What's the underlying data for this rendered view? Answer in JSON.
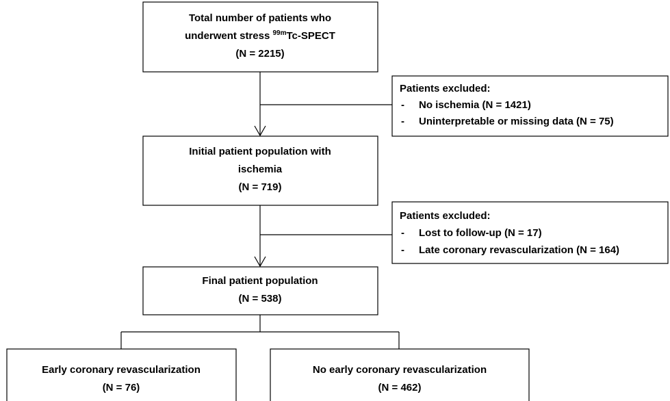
{
  "nodes": [
    {
      "line1": "Total number of patients who",
      "line2_prefix": "underwent stress ",
      "line2_sup": "99m",
      "line2_suffix": "Tc-SPECT",
      "count": "(N = 2215)"
    },
    {
      "line1": "Initial patient population with",
      "line2": "ischemia",
      "count": "(N = 719)"
    },
    {
      "line1": "Final patient population",
      "count": "(N = 538)"
    },
    {
      "line1": "Early coronary revascularization",
      "count": "(N = 76)"
    },
    {
      "line1": "No early coronary revascularization",
      "count": "(N = 462)"
    }
  ],
  "exclusions": [
    {
      "title": "Patients excluded:",
      "items": [
        {
          "dash": "-",
          "text": "No ischemia (N = 1421)"
        },
        {
          "dash": "-",
          "text": "Uninterpretable or missing data (N = 75)"
        }
      ]
    },
    {
      "title": "Patients excluded:",
      "items": [
        {
          "dash": "-",
          "text": "Lost to follow-up (N = 17)"
        },
        {
          "dash": "-",
          "text": "Late coronary revascularization (N = 164)"
        }
      ]
    }
  ]
}
